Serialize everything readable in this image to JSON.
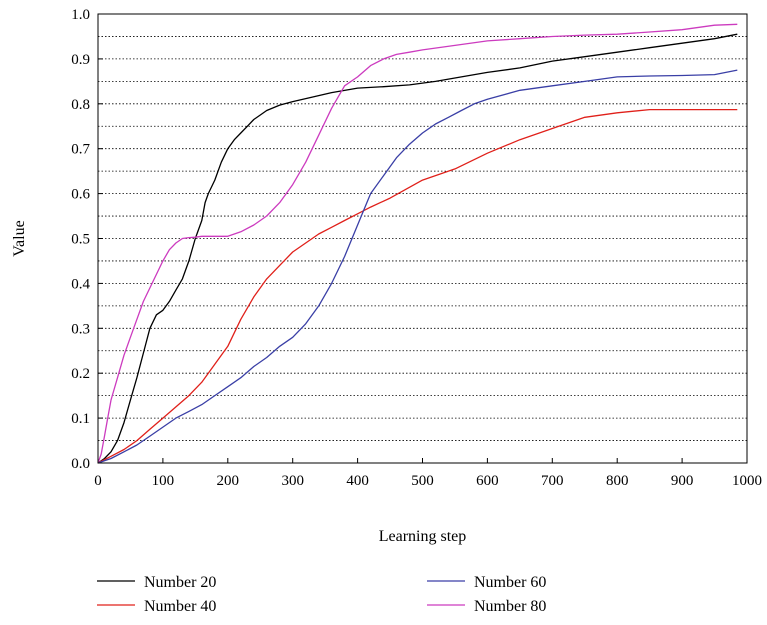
{
  "chart_data": {
    "type": "line",
    "xlabel": "Learning step",
    "ylabel": "Value",
    "xlim": [
      0,
      1000
    ],
    "ylim": [
      0,
      1.0
    ],
    "x_ticks": [
      "0",
      "100",
      "200",
      "300",
      "400",
      "500",
      "600",
      "700",
      "800",
      "900",
      "1000"
    ],
    "y_ticks": [
      "0.0",
      "0.1",
      "0.2",
      "0.3",
      "0.4",
      "0.5",
      "0.6",
      "0.7",
      "0.8",
      "0.9",
      "1.0"
    ],
    "grid": "horizontal dotted",
    "legend_placement": "bottom",
    "series": [
      {
        "name": "Number 20",
        "color": "#000000",
        "x": [
          0,
          10,
          20,
          30,
          40,
          50,
          60,
          70,
          80,
          90,
          100,
          110,
          120,
          130,
          140,
          150,
          160,
          165,
          170,
          180,
          190,
          200,
          210,
          220,
          230,
          240,
          250,
          260,
          280,
          300,
          330,
          360,
          400,
          440,
          480,
          520,
          560,
          600,
          650,
          700,
          750,
          800,
          850,
          900,
          950,
          985
        ],
        "y": [
          0.0,
          0.01,
          0.025,
          0.05,
          0.09,
          0.14,
          0.19,
          0.245,
          0.3,
          0.33,
          0.34,
          0.36,
          0.385,
          0.41,
          0.45,
          0.5,
          0.54,
          0.58,
          0.6,
          0.63,
          0.67,
          0.7,
          0.72,
          0.735,
          0.75,
          0.765,
          0.775,
          0.785,
          0.797,
          0.805,
          0.815,
          0.825,
          0.835,
          0.838,
          0.842,
          0.85,
          0.86,
          0.87,
          0.88,
          0.895,
          0.905,
          0.915,
          0.925,
          0.935,
          0.945,
          0.955
        ]
      },
      {
        "name": "Number 40",
        "color": "#e0201a",
        "x": [
          0,
          20,
          40,
          60,
          80,
          100,
          120,
          140,
          160,
          180,
          200,
          220,
          240,
          260,
          280,
          300,
          320,
          340,
          360,
          380,
          400,
          420,
          450,
          500,
          550,
          600,
          650,
          700,
          750,
          800,
          850,
          900,
          950,
          985
        ],
        "y": [
          0.0,
          0.015,
          0.03,
          0.05,
          0.075,
          0.1,
          0.125,
          0.15,
          0.18,
          0.22,
          0.26,
          0.32,
          0.37,
          0.41,
          0.44,
          0.47,
          0.49,
          0.51,
          0.525,
          0.54,
          0.555,
          0.57,
          0.59,
          0.63,
          0.655,
          0.69,
          0.72,
          0.745,
          0.77,
          0.78,
          0.787,
          0.787,
          0.787,
          0.787
        ]
      },
      {
        "name": "Number 60",
        "color": "#3a3fa6",
        "x": [
          0,
          20,
          40,
          60,
          80,
          100,
          120,
          140,
          160,
          180,
          200,
          220,
          240,
          260,
          280,
          300,
          320,
          340,
          360,
          380,
          400,
          420,
          440,
          460,
          480,
          500,
          520,
          540,
          560,
          580,
          600,
          650,
          700,
          750,
          800,
          850,
          900,
          950,
          985
        ],
        "y": [
          0.0,
          0.01,
          0.025,
          0.04,
          0.06,
          0.08,
          0.1,
          0.115,
          0.13,
          0.15,
          0.17,
          0.19,
          0.215,
          0.235,
          0.26,
          0.28,
          0.31,
          0.35,
          0.4,
          0.46,
          0.53,
          0.6,
          0.64,
          0.68,
          0.71,
          0.735,
          0.755,
          0.77,
          0.785,
          0.8,
          0.81,
          0.83,
          0.84,
          0.85,
          0.86,
          0.862,
          0.863,
          0.865,
          0.875
        ]
      },
      {
        "name": "Number 80",
        "color": "#cc3bbf",
        "x": [
          0,
          5,
          10,
          15,
          20,
          30,
          40,
          50,
          60,
          70,
          80,
          90,
          100,
          110,
          120,
          130,
          140,
          150,
          160,
          180,
          200,
          220,
          240,
          260,
          280,
          300,
          320,
          340,
          360,
          380,
          400,
          420,
          440,
          460,
          480,
          500,
          550,
          600,
          650,
          700,
          750,
          800,
          850,
          900,
          950,
          985
        ],
        "y": [
          0.0,
          0.02,
          0.06,
          0.1,
          0.14,
          0.19,
          0.24,
          0.28,
          0.32,
          0.36,
          0.39,
          0.42,
          0.45,
          0.475,
          0.49,
          0.5,
          0.502,
          0.503,
          0.505,
          0.505,
          0.505,
          0.515,
          0.53,
          0.55,
          0.58,
          0.62,
          0.67,
          0.73,
          0.79,
          0.84,
          0.86,
          0.885,
          0.9,
          0.91,
          0.915,
          0.92,
          0.93,
          0.94,
          0.945,
          0.95,
          0.953,
          0.955,
          0.96,
          0.965,
          0.975,
          0.977
        ]
      }
    ]
  }
}
